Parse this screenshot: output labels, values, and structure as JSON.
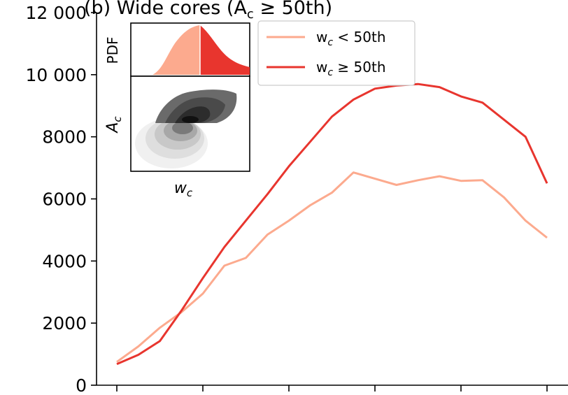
{
  "chart_data": {
    "type": "line",
    "title": "(b) Wide cores (A",
    "title_sub": "c",
    "title_tail": " ≥ 50th)",
    "xlabel": "",
    "ylabel": "",
    "ylim": [
      0,
      12000
    ],
    "xlim": [
      0,
      20
    ],
    "yticks": [
      0,
      2000,
      4000,
      6000,
      8000,
      10000,
      12000
    ],
    "ytick_labels": [
      "0",
      "2000",
      "4000",
      "6000",
      "8000",
      "10 000",
      "12 000"
    ],
    "xticks": [
      0,
      4,
      8,
      12,
      16,
      20
    ],
    "grid": false,
    "legend_position": "top-right",
    "series": [
      {
        "name": "w_c < 50th",
        "legend_main": "w",
        "legend_sub": "c",
        "legend_tail": " < 50th",
        "color": "#fcaa8e",
        "x": [
          0,
          1,
          2,
          3,
          4,
          5,
          6,
          7,
          8,
          9,
          10,
          11,
          12,
          13,
          14,
          15,
          16,
          17,
          18,
          19,
          20
        ],
        "y": [
          750,
          1250,
          1850,
          2350,
          2950,
          3850,
          4100,
          4850,
          5300,
          5800,
          6200,
          6850,
          6650,
          6450,
          6600,
          6730,
          6580,
          6600,
          6050,
          5300,
          4750
        ]
      },
      {
        "name": "w_c ≥ 50th",
        "legend_main": "w",
        "legend_sub": "c",
        "legend_tail": " ≥ 50th",
        "color": "#e8352e",
        "x": [
          0,
          1,
          2,
          3,
          4,
          5,
          6,
          7,
          8,
          9,
          10,
          11,
          12,
          13,
          14,
          15,
          16,
          17,
          18,
          19,
          20
        ],
        "y": [
          680,
          980,
          1420,
          2400,
          3450,
          4450,
          5300,
          6150,
          7050,
          7850,
          8650,
          9200,
          9550,
          9650,
          9700,
          9600,
          9300,
          9100,
          8550,
          8000,
          6500
        ]
      }
    ],
    "inset": {
      "top_ylabel": "PDF",
      "bottom_ylabel_main": "A",
      "bottom_ylabel_sub": "c",
      "xlabel_main": "w",
      "xlabel_sub": "c",
      "colors": {
        "low": "#fcaa8e",
        "high": "#e8352e"
      }
    }
  }
}
